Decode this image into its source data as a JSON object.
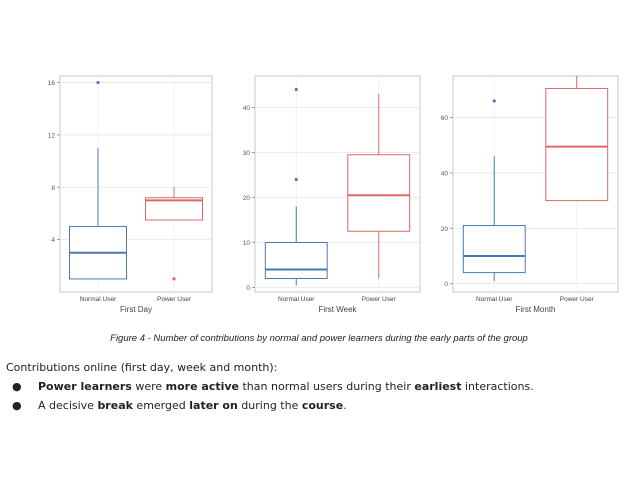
{
  "chart_data": [
    {
      "type": "box",
      "xlabel": "First Day",
      "categories": [
        "Normal User",
        "Power User"
      ],
      "yticks": [
        4,
        8,
        12,
        16
      ],
      "ylim": [
        0,
        16.5
      ],
      "grid": true,
      "boxes": [
        {
          "name": "Normal User",
          "color": "#4a7ab5",
          "min": 1,
          "q1": 1,
          "median": 3,
          "q3": 5,
          "max": 11,
          "outliers": [
            16
          ]
        },
        {
          "name": "Power User",
          "color": "#e06666",
          "min": 5.5,
          "q1": 5.5,
          "median": 7,
          "q3": 7.2,
          "max": 8,
          "outliers": [
            1
          ]
        }
      ]
    },
    {
      "type": "box",
      "xlabel": "First Week",
      "categories": [
        "Normal User",
        "Power User"
      ],
      "yticks": [
        0,
        10,
        20,
        30,
        40
      ],
      "ylim": [
        -1,
        47
      ],
      "grid": true,
      "boxes": [
        {
          "name": "Normal User",
          "color": "#4a7ab5",
          "min": 0.5,
          "q1": 2,
          "median": 4,
          "q3": 10,
          "max": 18,
          "outliers": [
            44,
            24
          ]
        },
        {
          "name": "Power User",
          "color": "#e06666",
          "min": 2,
          "q1": 12.5,
          "median": 20.5,
          "q3": 29.5,
          "max": 43,
          "outliers": []
        }
      ]
    },
    {
      "type": "box",
      "xlabel": "First Month",
      "categories": [
        "Normal User",
        "Power User"
      ],
      "yticks": [
        0,
        20,
        40,
        60
      ],
      "ylim": [
        -3,
        75
      ],
      "grid": true,
      "boxes": [
        {
          "name": "Normal User",
          "color": "#4a7ab5",
          "min": 1,
          "q1": 4,
          "median": 10,
          "q3": 21,
          "max": 46,
          "outliers": [
            66
          ]
        },
        {
          "name": "Power User",
          "color": "#e06666",
          "min": 30,
          "q1": 30,
          "median": 49.5,
          "q3": 70.5,
          "max": 75,
          "outliers": []
        }
      ]
    }
  ],
  "caption": "Figure 4 - Number of contributions by normal and power learners during the early parts of the group",
  "intro": "Contributions online (first day, week and month):",
  "bullet_char": "●",
  "bullet1": {
    "b1": "Power learners",
    "t1": " were ",
    "b2": "more active",
    "t2": " than normal users during their ",
    "b3": "earliest",
    "t3": " interactions."
  },
  "bullet2": {
    "t1": "A decisive ",
    "b1": "break",
    "t2": " emerged ",
    "b2": "later on",
    "t3": " during the ",
    "b3": "course",
    "t4": "."
  }
}
